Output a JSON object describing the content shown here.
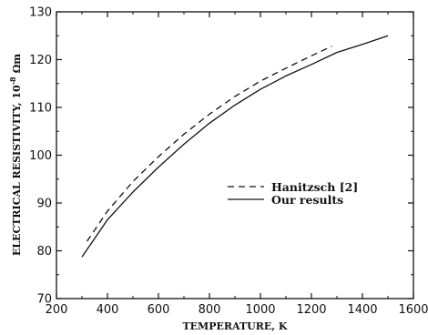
{
  "chart_data": {
    "type": "line",
    "title": "",
    "xlabel": "TEMPERATURE, K",
    "ylabel": "ELECTRICAL RESISTIVITY, 10",
    "ylabel_exponent": "-8",
    "ylabel_unit": "Ωm",
    "xlim": [
      200,
      1600
    ],
    "ylim": [
      70,
      130
    ],
    "xticks": [
      "200",
      "400",
      "600",
      "800",
      "1000",
      "1200",
      "1400",
      "1600"
    ],
    "yticks": [
      "70",
      "80",
      "90",
      "100",
      "110",
      "120",
      "130"
    ],
    "grid": false,
    "legend_position": "center-right",
    "series": [
      {
        "name": "Hanitzsch [2]",
        "style": "dashed",
        "x": [
          320,
          400,
          500,
          600,
          700,
          800,
          900,
          1000,
          1100,
          1200,
          1280
        ],
        "y": [
          82,
          88.3,
          94.5,
          99.7,
          104.4,
          108.6,
          112.3,
          115.5,
          118.2,
          120.8,
          122.8
        ]
      },
      {
        "name": "Our results",
        "style": "solid",
        "x": [
          300,
          400,
          500,
          600,
          700,
          800,
          900,
          1000,
          1100,
          1200,
          1300,
          1400,
          1500
        ],
        "y": [
          78.7,
          86.5,
          92.3,
          97.5,
          102.3,
          106.7,
          110.5,
          113.8,
          116.6,
          119,
          121.5,
          123.2,
          125
        ]
      }
    ]
  }
}
